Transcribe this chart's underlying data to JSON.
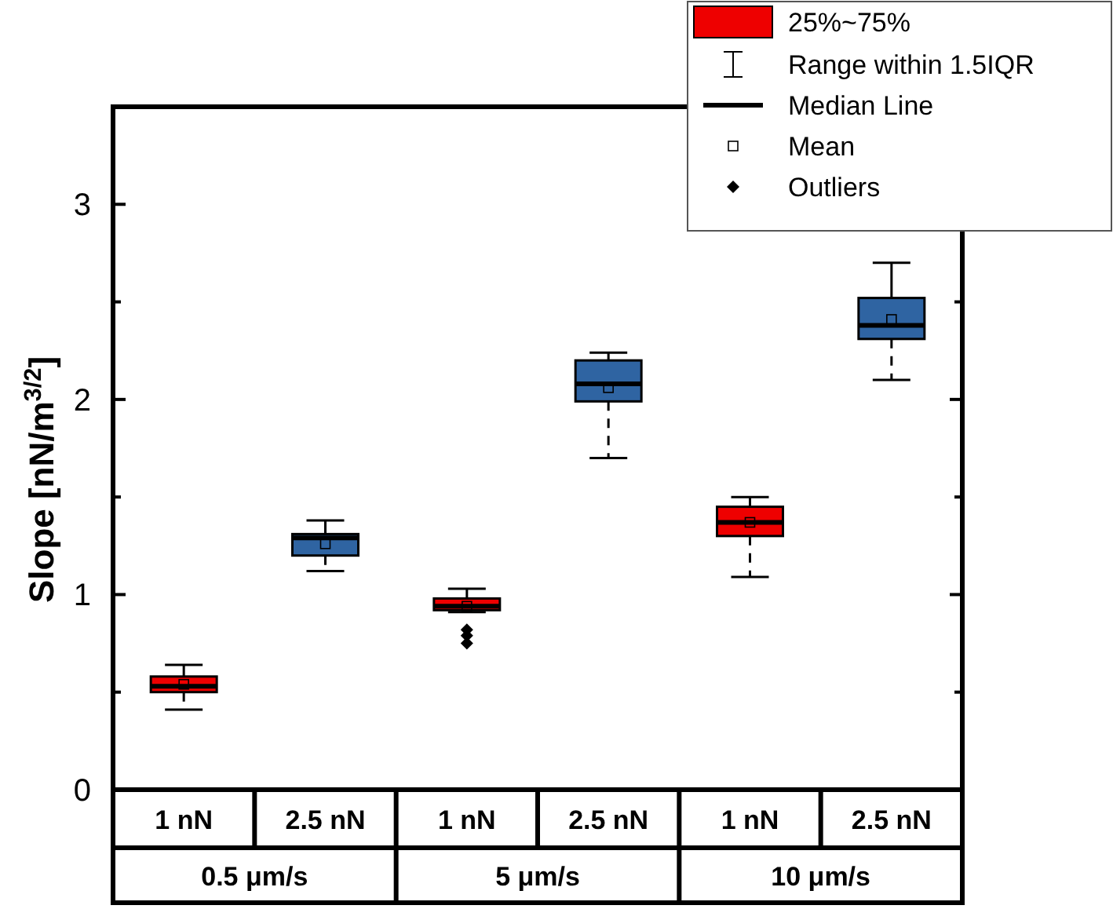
{
  "chart_data": {
    "type": "box",
    "ylabel": "Slope [nN/m$^{3/2}$]",
    "categories": [
      "1 nN",
      "2.5 nN",
      "1 nN",
      "2.5 nN",
      "1 nN",
      "2.5 nN"
    ],
    "ylim": [
      0,
      3.5
    ],
    "yticks": [
      0,
      {
        "value": 0.5,
        "label": null
      },
      1,
      {
        "value": 1.5,
        "label": null
      },
      2,
      {
        "value": 2.5,
        "label": null
      },
      3
    ],
    "legend": "top right",
    "series": [
      {
        "name": "25%~75%",
        "color": "#ee0000",
        "boxes": [
          {
            "low": 0.41,
            "q1": 0.5,
            "median": 0.53,
            "q3": 0.58,
            "high": 0.64,
            "mean": 0.54
          },
          null,
          {
            "low": 0.91,
            "q1": 0.92,
            "median": 0.94,
            "q3": 0.98,
            "high": 1.03,
            "mean": 0.94,
            "outliers": [
              0.82,
              0.79,
              0.75
            ]
          },
          null,
          {
            "low": 1.09,
            "q1": 1.3,
            "median": 1.37,
            "q3": 1.45,
            "high": 1.5,
            "mean": 1.37
          },
          null
        ]
      },
      {
        "color": "#2f64a2",
        "boxes": [
          null,
          {
            "low": 1.12,
            "q1": 1.2,
            "median": 1.29,
            "q3": 1.31,
            "high": 1.38,
            "mean": 1.26
          },
          null,
          {
            "low": 1.7,
            "q1": 1.99,
            "median": 2.08,
            "q3": 2.2,
            "high": 2.24,
            "mean": 2.06
          },
          null,
          {
            "low": 2.1,
            "q1": 2.31,
            "median": 2.38,
            "q3": 2.52,
            "high": 2.7,
            "mean": 2.41
          }
        ]
      }
    ],
    "annotations": [
      "Range within 1.5IQR",
      "Median Line",
      "Mean",
      "Outliers",
      "0.5 μm/s",
      "5 μm/s",
      "10 μm/s"
    ]
  }
}
